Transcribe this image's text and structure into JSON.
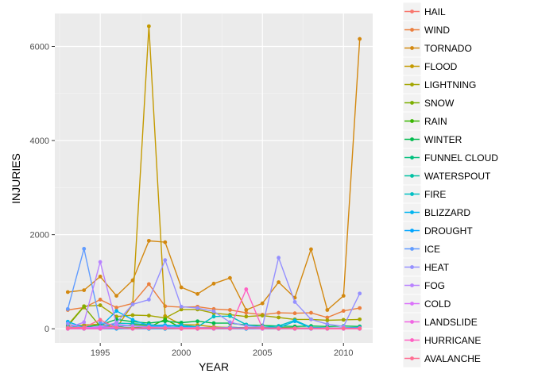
{
  "chart_data": {
    "type": "line",
    "xlabel": "YEAR",
    "ylabel": "INJURIES",
    "xlim": [
      1992.2,
      2011.8
    ],
    "ylim": [
      -300,
      6700
    ],
    "xticks": [
      1995,
      2000,
      2005,
      2010
    ],
    "yticks": [
      0,
      2000,
      4000,
      6000
    ],
    "grid": true,
    "legend_position": "right",
    "years": [
      1993,
      1994,
      1995,
      1996,
      1997,
      1998,
      1999,
      2000,
      2001,
      2002,
      2003,
      2004,
      2005,
      2006,
      2007,
      2008,
      2009,
      2010,
      2011
    ],
    "series": [
      {
        "name": "HAIL",
        "color": "#F8766D",
        "values": [
          0,
          5,
          10,
          15,
          20,
          30,
          10,
          20,
          10,
          20,
          10,
          5,
          10,
          15,
          5,
          10,
          5,
          5,
          5
        ]
      },
      {
        "name": "WIND",
        "color": "#EB7F3E",
        "values": [
          400,
          450,
          620,
          450,
          540,
          950,
          480,
          460,
          470,
          420,
          400,
          340,
          300,
          340,
          330,
          340,
          240,
          380,
          440
        ]
      },
      {
        "name": "TORNADO",
        "color": "#D3880F",
        "values": [
          780,
          820,
          1110,
          700,
          1030,
          1870,
          1840,
          880,
          740,
          960,
          1080,
          400,
          540,
          990,
          660,
          1690,
          400,
          700,
          6160
        ]
      },
      {
        "name": "FLOOD",
        "color": "#C49A00",
        "values": [
          50,
          80,
          100,
          20,
          520,
          6430,
          270,
          90,
          80,
          40,
          20,
          20,
          10,
          20,
          10,
          10,
          10,
          10,
          10
        ]
      },
      {
        "name": "LIGHTNING",
        "color": "#A3A500",
        "values": [
          80,
          480,
          500,
          260,
          290,
          280,
          230,
          410,
          410,
          330,
          300,
          260,
          280,
          240,
          200,
          200,
          180,
          190,
          200
        ]
      },
      {
        "name": "SNOW",
        "color": "#7CAE00",
        "values": [
          60,
          470,
          50,
          30,
          90,
          70,
          40,
          30,
          20,
          30,
          30,
          20,
          20,
          30,
          20,
          10,
          10,
          10,
          10
        ]
      },
      {
        "name": "RAIN",
        "color": "#39B600",
        "values": [
          20,
          30,
          10,
          30,
          20,
          30,
          200,
          20,
          10,
          10,
          30,
          20,
          20,
          20,
          20,
          10,
          10,
          10,
          10
        ]
      },
      {
        "name": "WINTER",
        "color": "#00BB4E",
        "values": [
          30,
          40,
          80,
          200,
          150,
          120,
          160,
          130,
          160,
          120,
          120,
          80,
          70,
          60,
          50,
          60,
          50,
          60,
          50
        ]
      },
      {
        "name": "FUNNEL CLOUD",
        "color": "#00BF7D",
        "values": [
          0,
          0,
          0,
          10,
          0,
          0,
          0,
          0,
          0,
          0,
          0,
          0,
          0,
          0,
          0,
          0,
          0,
          0,
          0
        ]
      },
      {
        "name": "WATERSPOUT",
        "color": "#00C1A3",
        "values": [
          10,
          10,
          20,
          30,
          10,
          20,
          10,
          10,
          10,
          10,
          10,
          20,
          10,
          10,
          10,
          10,
          10,
          10,
          10
        ]
      },
      {
        "name": "FIRE",
        "color": "#00BFC4",
        "values": [
          40,
          30,
          20,
          120,
          110,
          90,
          60,
          80,
          40,
          260,
          270,
          90,
          30,
          60,
          180,
          30,
          20,
          10,
          10
        ]
      },
      {
        "name": "BLIZZARD",
        "color": "#00B4EF",
        "values": [
          150,
          30,
          40,
          380,
          190,
          70,
          80,
          50,
          30,
          10,
          30,
          20,
          30,
          20,
          160,
          20,
          10,
          20,
          30
        ]
      },
      {
        "name": "DROUGHT",
        "color": "#00A5FF",
        "values": [
          0,
          0,
          0,
          0,
          0,
          0,
          0,
          0,
          0,
          0,
          0,
          0,
          0,
          0,
          0,
          0,
          0,
          0,
          0
        ]
      },
      {
        "name": "ICE",
        "color": "#619CFF",
        "values": [
          420,
          1700,
          130,
          60,
          60,
          50,
          50,
          20,
          20,
          20,
          20,
          10,
          10,
          10,
          10,
          10,
          10,
          10,
          10
        ]
      },
      {
        "name": "HEAT",
        "color": "#9590FF",
        "values": [
          110,
          10,
          40,
          130,
          520,
          620,
          1460,
          470,
          440,
          370,
          140,
          60,
          40,
          1510,
          570,
          200,
          100,
          50,
          750
        ]
      },
      {
        "name": "FOG",
        "color": "#B983FF",
        "values": [
          20,
          140,
          1420,
          100,
          60,
          30,
          20,
          20,
          20,
          20,
          20,
          10,
          10,
          10,
          10,
          10,
          10,
          10,
          10
        ]
      },
      {
        "name": "COLD",
        "color": "#DB72FB",
        "values": [
          10,
          20,
          40,
          30,
          10,
          10,
          20,
          10,
          20,
          10,
          10,
          10,
          10,
          10,
          10,
          10,
          10,
          10,
          10
        ]
      },
      {
        "name": "LANDSLIDE",
        "color": "#F066E3",
        "values": [
          0,
          10,
          10,
          20,
          0,
          10,
          10,
          0,
          0,
          10,
          0,
          10,
          0,
          10,
          0,
          0,
          0,
          0,
          0
        ]
      },
      {
        "name": "HURRICANE",
        "color": "#FF61C3",
        "values": [
          0,
          0,
          0,
          20,
          0,
          30,
          10,
          0,
          0,
          0,
          10,
          840,
          10,
          0,
          0,
          10,
          0,
          0,
          0
        ]
      },
      {
        "name": "AVALANCHE",
        "color": "#FF6C91",
        "values": [
          20,
          30,
          190,
          20,
          10,
          20,
          10,
          10,
          10,
          20,
          10,
          20,
          20,
          10,
          10,
          10,
          10,
          10,
          10
        ]
      }
    ]
  }
}
